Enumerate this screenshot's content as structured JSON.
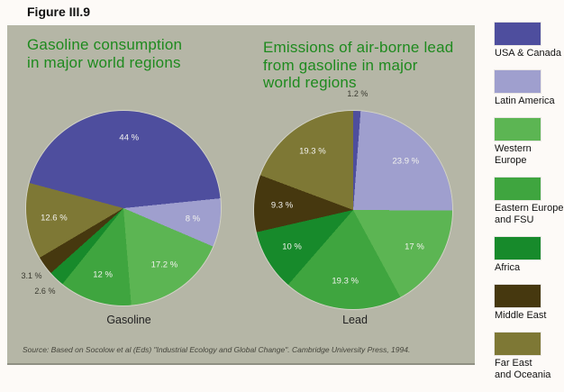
{
  "figure_label": "Figure III.9",
  "source": "Source: Based on Socolow et al (Eds) \"Industrial Ecology and Global Change\". Cambridge University Press, 1994.",
  "colors": {
    "panel_background": "#b5b6a6",
    "title_green": "#1e8a1e",
    "usa_canada": "#4e4e9e",
    "latin_america": "#9f9fce",
    "western_europe": "#5cb553",
    "eastern_europe_fsu": "#3fa53f",
    "africa": "#178a2b",
    "middle_east": "#46380f",
    "far_east_oceania": "#7e7835"
  },
  "chart_data": [
    {
      "type": "pie",
      "title": "Gasoline consumption\nin major world regions",
      "axis_label": "Gasoline",
      "start_angle_deg": -75,
      "slices": [
        {
          "region": "USA & Canada",
          "value": 44,
          "label": "44 %",
          "color": "#4e4e9e"
        },
        {
          "region": "Latin America",
          "value": 8,
          "label": "8 %",
          "color": "#9f9fce"
        },
        {
          "region": "Western Europe",
          "value": 17.2,
          "label": "17.2 %",
          "color": "#5cb553"
        },
        {
          "region": "Eastern Europe and FSU",
          "value": 12,
          "label": "12 %",
          "color": "#3fa53f"
        },
        {
          "region": "Africa",
          "value": 2.6,
          "label": "2.6 %",
          "color": "#178a2b"
        },
        {
          "region": "Middle East",
          "value": 3.1,
          "label": "3.1 %",
          "color": "#46380f"
        },
        {
          "region": "Far East and Oceania",
          "value": 12.6,
          "label": "12.6 %",
          "color": "#7e7835"
        }
      ]
    },
    {
      "type": "pie",
      "title": "Emissions of air-borne lead\nfrom gasoline in major\nworld regions",
      "axis_label": "Lead",
      "start_angle_deg": 0,
      "slices": [
        {
          "region": "USA & Canada",
          "value": 1.2,
          "label": "1.2 %",
          "color": "#4e4e9e"
        },
        {
          "region": "Latin America",
          "value": 23.9,
          "label": "23.9 %",
          "color": "#9f9fce"
        },
        {
          "region": "Western Europe",
          "value": 17,
          "label": "17 %",
          "color": "#5cb553"
        },
        {
          "region": "Eastern Europe and FSU",
          "value": 19.3,
          "label": "19.3 %",
          "color": "#3fa53f"
        },
        {
          "region": "Africa",
          "value": 10,
          "label": "10 %",
          "color": "#178a2b"
        },
        {
          "region": "Middle East",
          "value": 9.3,
          "label": "9.3 %",
          "color": "#46380f"
        },
        {
          "region": "Far East and Oceania",
          "value": 19.3,
          "label": "19.3 %",
          "color": "#7e7835"
        }
      ]
    }
  ],
  "legend": {
    "items": [
      {
        "label": "USA & Canada",
        "color": "#4e4e9e"
      },
      {
        "label": "Latin America",
        "color": "#9f9fce"
      },
      {
        "label": "Western Europe",
        "color": "#5cb553"
      },
      {
        "label": "Eastern Europe\nand FSU",
        "color": "#3fa53f"
      },
      {
        "label": "Africa",
        "color": "#178a2b"
      },
      {
        "label": "Middle East",
        "color": "#46380f"
      },
      {
        "label": "Far East\nand Oceania",
        "color": "#7e7835"
      }
    ]
  }
}
